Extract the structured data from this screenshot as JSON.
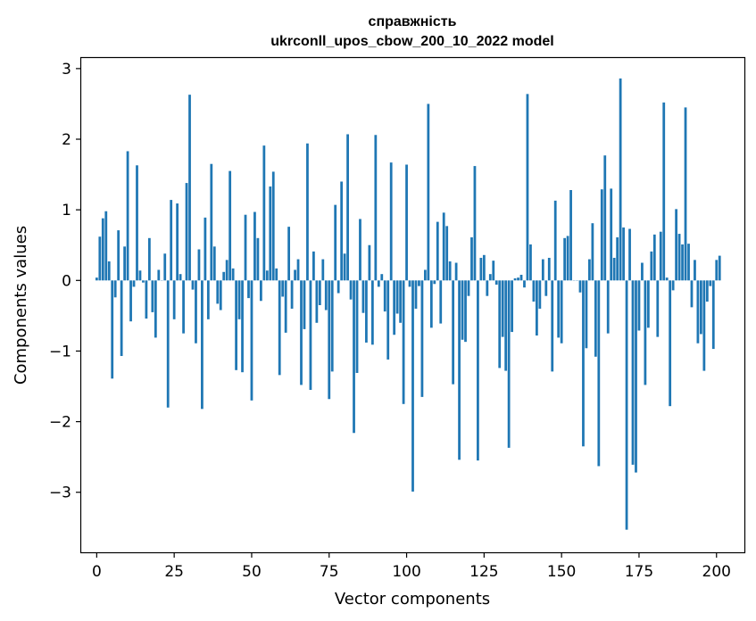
{
  "chart_data": {
    "type": "bar",
    "title": [
      "справжність",
      "ukrconll_upos_cbow_200_10_2022 model"
    ],
    "xlabel": "Vector components",
    "ylabel": "Components values",
    "xlim": [
      -5,
      209
    ],
    "ylim": [
      -3.85,
      3.15
    ],
    "xticks": [
      0,
      25,
      50,
      75,
      100,
      125,
      150,
      175,
      200
    ],
    "yticks": [
      -3,
      -2,
      -1,
      0,
      1,
      2,
      3
    ],
    "ytick_labels": [
      "−3",
      "−2",
      "−1",
      "0",
      "1",
      "2",
      "3"
    ],
    "bar_color": "#1f77b4",
    "grid": false,
    "legend": "none",
    "values": [
      0.04,
      0.62,
      0.88,
      0.98,
      0.27,
      -1.39,
      -0.24,
      0.71,
      -1.07,
      0.48,
      1.83,
      -0.58,
      -0.09,
      1.63,
      0.14,
      -0.03,
      -0.54,
      0.6,
      -0.45,
      -0.81,
      0.15,
      0.0,
      0.38,
      -1.8,
      1.14,
      -0.55,
      1.09,
      0.09,
      -0.75,
      1.38,
      2.63,
      -0.13,
      -0.89,
      0.44,
      -1.82,
      0.89,
      -0.55,
      1.65,
      0.48,
      -0.33,
      -0.42,
      0.12,
      0.29,
      1.55,
      0.17,
      -1.27,
      -0.55,
      -1.3,
      0.93,
      -0.25,
      -1.7,
      0.97,
      0.6,
      -0.29,
      1.91,
      0.14,
      1.33,
      1.54,
      0.17,
      -1.34,
      -0.23,
      -0.74,
      0.76,
      -0.4,
      0.15,
      0.3,
      -1.48,
      -0.69,
      1.94,
      -1.55,
      0.41,
      -0.6,
      -0.35,
      0.3,
      -0.42,
      -1.68,
      -1.29,
      1.07,
      -0.18,
      1.4,
      0.38,
      2.07,
      -0.27,
      -2.16,
      -1.31,
      0.87,
      -0.46,
      -0.88,
      0.5,
      -0.91,
      2.06,
      -0.09,
      0.09,
      -0.44,
      -1.12,
      1.67,
      -0.77,
      -0.47,
      -0.6,
      -1.75,
      1.64,
      -0.09,
      -2.99,
      -0.4,
      -0.08,
      -1.65,
      0.15,
      2.5,
      -0.67,
      -0.05,
      0.83,
      -0.61,
      0.96,
      0.77,
      0.27,
      -1.47,
      0.25,
      -2.54,
      -0.84,
      -0.87,
      -0.22,
      0.61,
      1.62,
      -2.55,
      0.32,
      0.36,
      -0.22,
      0.09,
      0.28,
      -0.06,
      -1.24,
      -0.8,
      -1.28,
      -2.37,
      -0.73,
      0.03,
      0.04,
      0.08,
      -0.1,
      2.64,
      0.51,
      -0.3,
      -0.78,
      -0.4,
      0.3,
      -0.22,
      0.32,
      -1.29,
      1.13,
      -0.81,
      -0.89,
      0.6,
      0.63,
      1.28,
      0.0,
      0.0,
      -0.17,
      -2.35,
      -0.96,
      0.3,
      0.81,
      -1.08,
      -2.63,
      1.29,
      1.77,
      -0.75,
      1.3,
      0.32,
      0.61,
      2.86,
      0.75,
      -3.53,
      0.73,
      -2.61,
      -2.72,
      -0.71,
      0.25,
      -1.48,
      -0.67,
      0.41,
      0.65,
      -0.8,
      0.69,
      2.52,
      0.04,
      -1.78,
      -0.14,
      1.01,
      0.66,
      0.51,
      2.45,
      0.52,
      -0.38,
      0.29,
      -0.89,
      -0.76,
      -1.28,
      -0.3,
      -0.08,
      -0.97,
      0.29,
      0.35
    ]
  }
}
